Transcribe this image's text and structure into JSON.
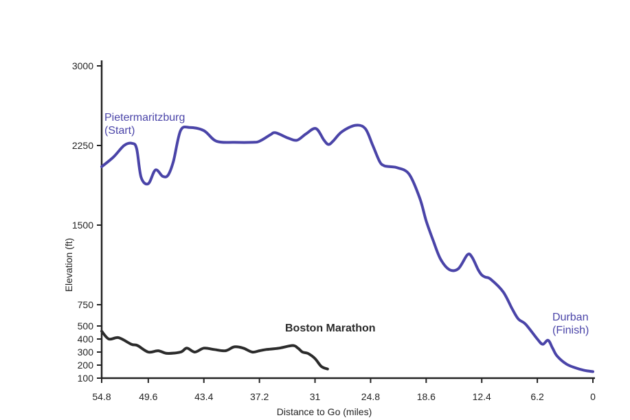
{
  "chart_data": {
    "type": "line",
    "title": "",
    "xlabel": "Distance to Go (miles)",
    "ylabel": "Elevation (ft)",
    "x_ticks": [
      "54.8",
      "49.6",
      "43.4",
      "37.2",
      "31",
      "24.8",
      "18.6",
      "12.4",
      "6.2",
      "0"
    ],
    "y_ticks": [
      "3000",
      "2250",
      "1500",
      "750",
      "500",
      "400",
      "300",
      "200",
      "100"
    ],
    "xlim": [
      54.8,
      0
    ],
    "grid": false,
    "colors": {
      "comrades": "#4a44a8",
      "boston": "#2b2b2b"
    },
    "annotations": [
      {
        "lines": [
          "Pietermaritzburg",
          "(Start)"
        ],
        "series": 0
      },
      {
        "lines": [
          "Durban",
          "(Finish)"
        ],
        "series": 0
      },
      {
        "lines": [
          "Boston Marathon"
        ],
        "series": 1
      }
    ],
    "series": [
      {
        "name": "",
        "x": [
          54.8,
          53.5,
          52.3,
          51.4,
          50.9,
          50.4,
          49.6,
          48.8,
          48.0,
          47.4,
          46.8,
          46.0,
          45.0,
          43.4,
          42.0,
          40.0,
          38.0,
          37.2,
          36.0,
          35.4,
          34.0,
          33.0,
          32.0,
          30.9,
          30.0,
          29.5,
          29.0,
          28.0,
          26.5,
          25.4,
          24.6,
          23.8,
          23.3,
          22.6,
          21.8,
          20.5,
          19.3,
          18.6,
          17.8,
          17.0,
          16.0,
          15.0,
          14.0,
          13.5,
          12.8,
          12.4,
          12.0,
          11.4,
          10.0,
          9.0,
          8.3,
          7.5,
          6.2,
          5.6,
          5.0,
          4.5,
          4.0,
          3.0,
          2.0,
          1.0,
          0.0
        ],
        "y": [
          2050,
          2140,
          2250,
          2270,
          2220,
          1950,
          1890,
          2020,
          1960,
          1970,
          2100,
          2390,
          2420,
          2390,
          2290,
          2280,
          2280,
          2290,
          2350,
          2370,
          2320,
          2300,
          2360,
          2410,
          2300,
          2260,
          2290,
          2380,
          2440,
          2410,
          2260,
          2100,
          2060,
          2050,
          2040,
          1980,
          1750,
          1540,
          1350,
          1180,
          1080,
          1090,
          1220,
          1200,
          1080,
          1030,
          1010,
          990,
          870,
          700,
          580,
          520,
          400,
          360,
          390,
          330,
          270,
          210,
          180,
          160,
          150
        ]
      },
      {
        "name": "",
        "x": [
          54.8,
          54.0,
          52.9,
          51.5,
          50.8,
          49.6,
          48.5,
          47.5,
          46.0,
          45.3,
          44.4,
          43.4,
          42.3,
          41.0,
          40.0,
          39.0,
          38.0,
          37.2,
          36.4,
          35.0,
          33.5,
          32.9,
          32.4,
          31.8,
          31.0,
          30.3,
          29.6
        ],
        "y": [
          460,
          400,
          410,
          360,
          350,
          300,
          310,
          290,
          300,
          330,
          300,
          330,
          320,
          310,
          340,
          330,
          300,
          310,
          320,
          330,
          350,
          330,
          300,
          290,
          250,
          190,
          170
        ]
      }
    ]
  }
}
